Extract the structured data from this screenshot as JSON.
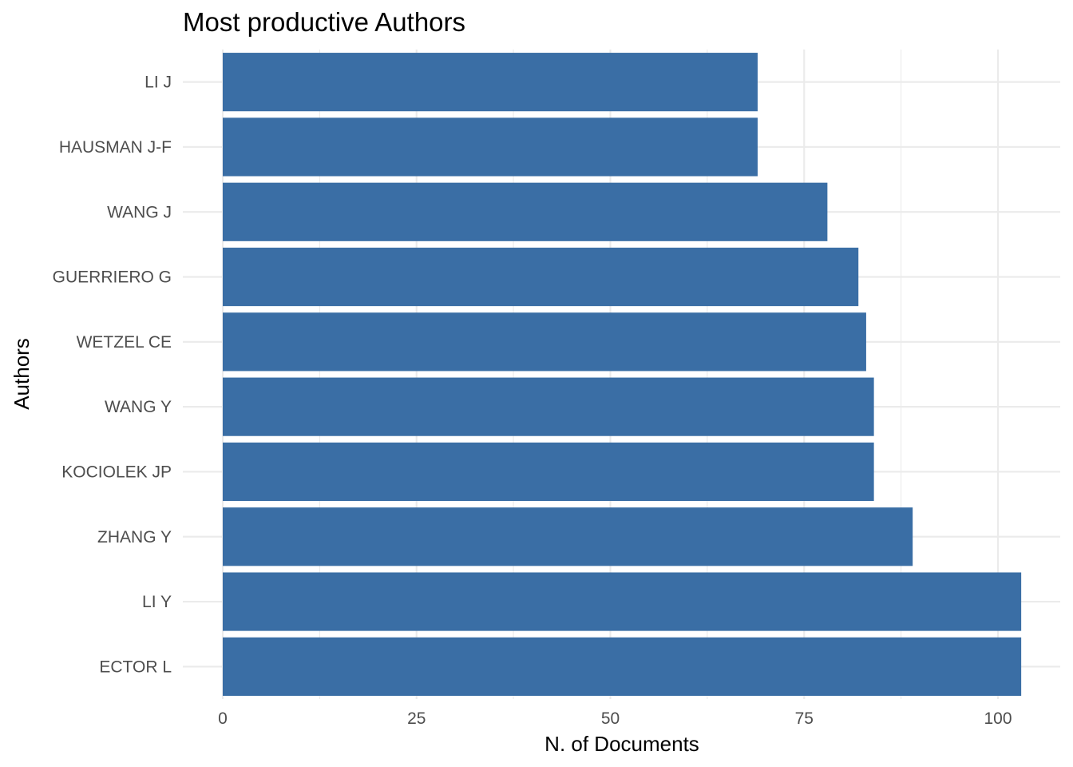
{
  "chart_data": {
    "type": "bar",
    "orientation": "horizontal",
    "title": "Most productive Authors",
    "xlabel": "N. of Documents",
    "ylabel": "Authors",
    "categories": [
      "LI J",
      "HAUSMAN J-F",
      "WANG J",
      "GUERRIERO G",
      "WETZEL CE",
      "WANG Y",
      "KOCIOLEK JP",
      "ZHANG Y",
      "LI Y",
      "ECTOR L"
    ],
    "values": [
      69,
      69,
      78,
      82,
      83,
      84,
      84,
      89,
      103,
      103
    ],
    "xlim": [
      0,
      103
    ],
    "x_ticks": [
      0,
      25,
      50,
      75,
      100
    ],
    "x_tick_labels": [
      "0",
      "25",
      "50",
      "75",
      "100"
    ],
    "grid": true,
    "legend": "none",
    "bar_color": "#3A6EA5"
  }
}
